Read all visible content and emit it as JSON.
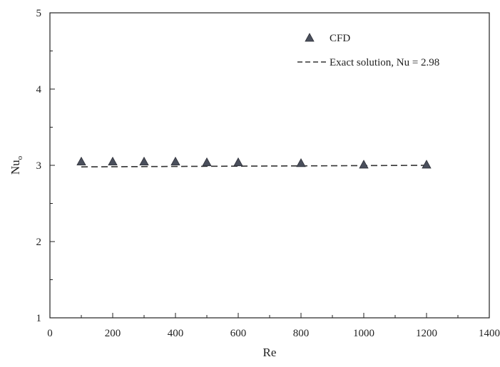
{
  "chart_data": {
    "type": "scatter",
    "xlabel": "Re",
    "ylabel": "Nu",
    "ylabel_subscript": "o",
    "xlim": [
      0,
      1400
    ],
    "ylim": [
      1,
      5
    ],
    "xticks": [
      0,
      200,
      400,
      600,
      800,
      1000,
      1200,
      1400
    ],
    "yticks": [
      1,
      2,
      3,
      4,
      5
    ],
    "grid": false,
    "legend_position": "top-right",
    "series": [
      {
        "name": "CFD",
        "marker": "triangle",
        "color": "#4a4f5c",
        "points": [
          {
            "x": 100,
            "y": 3.05
          },
          {
            "x": 200,
            "y": 3.05
          },
          {
            "x": 300,
            "y": 3.05
          },
          {
            "x": 400,
            "y": 3.05
          },
          {
            "x": 500,
            "y": 3.04
          },
          {
            "x": 600,
            "y": 3.04
          },
          {
            "x": 800,
            "y": 3.03
          },
          {
            "x": 1000,
            "y": 3.01
          },
          {
            "x": 1200,
            "y": 3.01
          }
        ]
      },
      {
        "name": "Exact solution, Nu = 2.98",
        "style": "dashed",
        "color": "#333333",
        "x": [
          100,
          1200
        ],
        "y": [
          2.98,
          3.0
        ]
      }
    ]
  }
}
